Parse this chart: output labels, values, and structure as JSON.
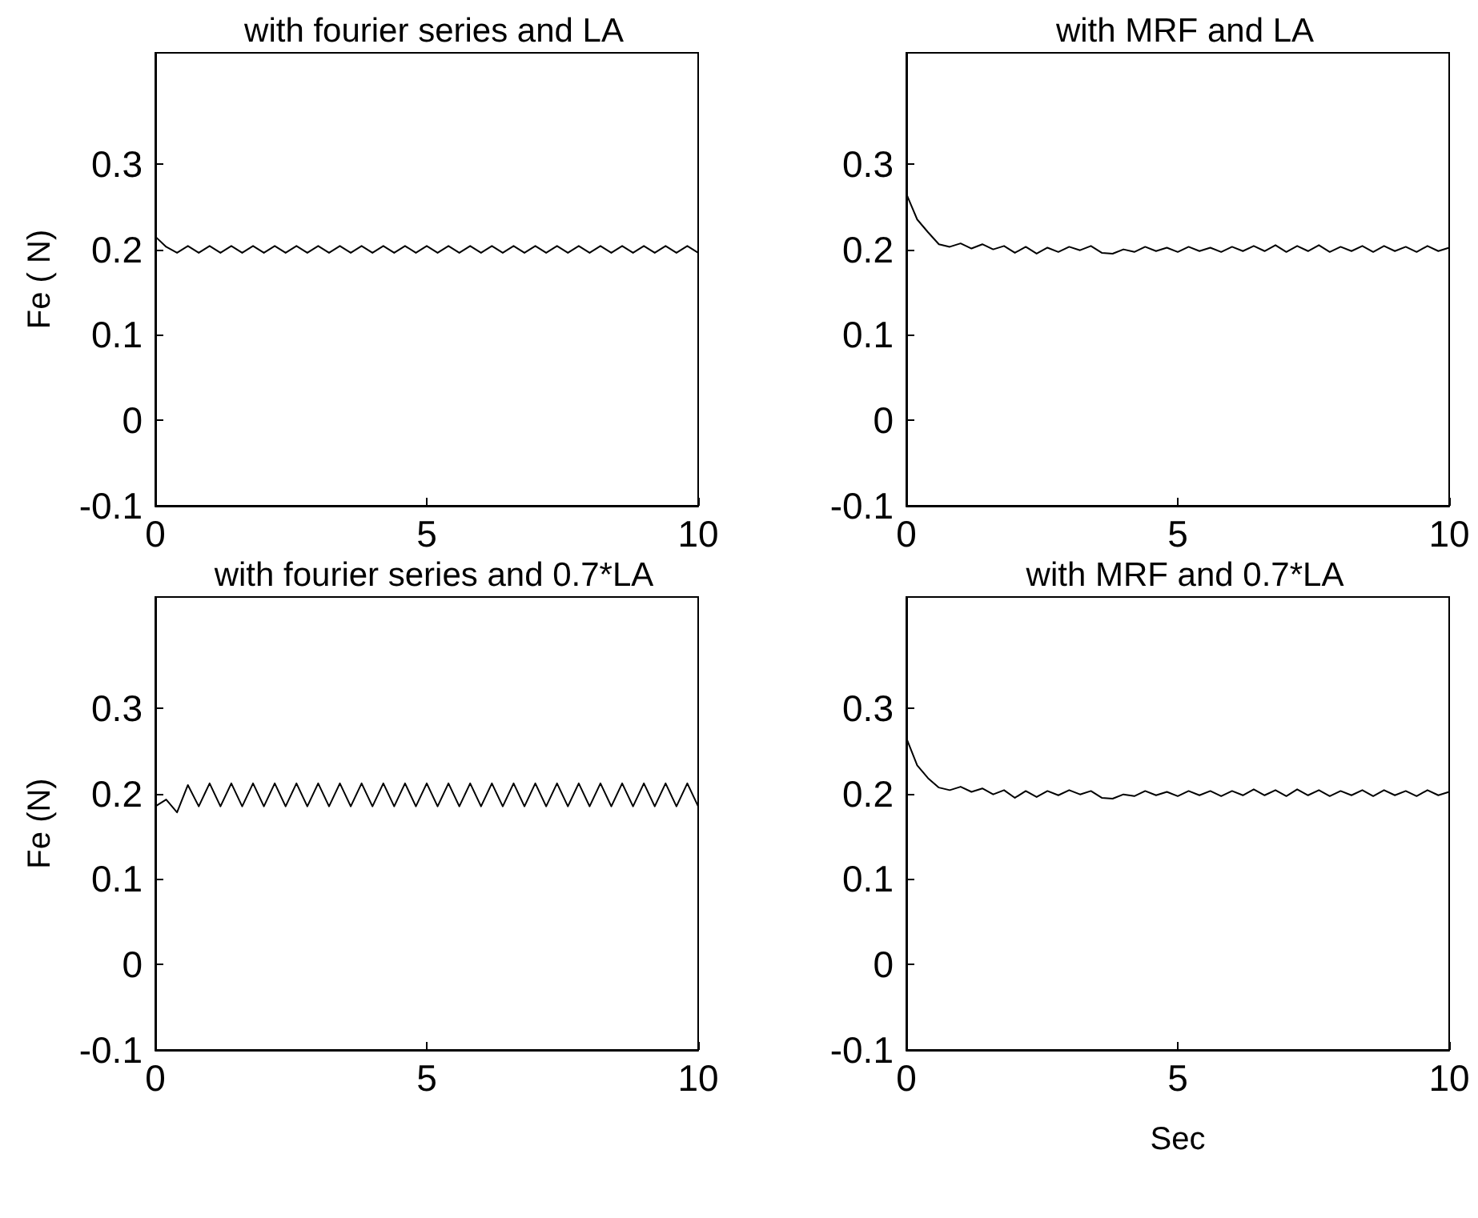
{
  "chart_data": [
    {
      "type": "line",
      "title": "with fourier series and LA",
      "ylabel": "Fe ( N)",
      "xlim": [
        0,
        10
      ],
      "xticks": [
        0,
        5,
        10
      ],
      "ylim": [
        -0.1,
        0.43
      ],
      "yticks": [
        -0.1,
        0,
        0.1,
        0.2,
        0.3
      ],
      "x": [
        0,
        0.2,
        0.4,
        0.6,
        0.8,
        1,
        1.2,
        1.4,
        1.6,
        1.8,
        2,
        2.2,
        2.4,
        2.6,
        2.8,
        3,
        3.2,
        3.4,
        3.6,
        3.8,
        4,
        4.2,
        4.4,
        4.6,
        4.8,
        5,
        5.2,
        5.4,
        5.6,
        5.8,
        6,
        6.2,
        6.4,
        6.6,
        6.8,
        7,
        7.2,
        7.4,
        7.6,
        7.8,
        8,
        8.2,
        8.4,
        8.6,
        8.8,
        9,
        9.2,
        9.4,
        9.6,
        9.8,
        10
      ],
      "series": [
        {
          "color": "#000000",
          "values": [
            0.215,
            0.203,
            0.196,
            0.204,
            0.196,
            0.204,
            0.196,
            0.204,
            0.196,
            0.204,
            0.196,
            0.204,
            0.196,
            0.204,
            0.196,
            0.204,
            0.196,
            0.204,
            0.196,
            0.204,
            0.196,
            0.204,
            0.196,
            0.204,
            0.196,
            0.204,
            0.196,
            0.204,
            0.196,
            0.204,
            0.196,
            0.204,
            0.196,
            0.204,
            0.196,
            0.204,
            0.196,
            0.204,
            0.196,
            0.204,
            0.196,
            0.204,
            0.196,
            0.204,
            0.196,
            0.204,
            0.196,
            0.204,
            0.196,
            0.204,
            0.196
          ]
        }
      ]
    },
    {
      "type": "line",
      "title": "with MRF and LA",
      "xlim": [
        0,
        10
      ],
      "xticks": [
        0,
        5,
        10
      ],
      "ylim": [
        -0.1,
        0.43
      ],
      "yticks": [
        -0.1,
        0,
        0.1,
        0.2,
        0.3
      ],
      "x": [
        0,
        0.2,
        0.4,
        0.6,
        0.8,
        1,
        1.2,
        1.4,
        1.6,
        1.8,
        2,
        2.2,
        2.4,
        2.6,
        2.8,
        3,
        3.2,
        3.4,
        3.6,
        3.8,
        4,
        4.2,
        4.4,
        4.6,
        4.8,
        5,
        5.2,
        5.4,
        5.6,
        5.8,
        6,
        6.2,
        6.4,
        6.6,
        6.8,
        7,
        7.2,
        7.4,
        7.6,
        7.8,
        8,
        8.2,
        8.4,
        8.6,
        8.8,
        9,
        9.2,
        9.4,
        9.6,
        9.8,
        10
      ],
      "series": [
        {
          "color": "#000000",
          "values": [
            0.265,
            0.235,
            0.22,
            0.206,
            0.203,
            0.207,
            0.201,
            0.206,
            0.2,
            0.204,
            0.196,
            0.203,
            0.195,
            0.202,
            0.197,
            0.203,
            0.199,
            0.204,
            0.196,
            0.195,
            0.2,
            0.197,
            0.203,
            0.198,
            0.202,
            0.197,
            0.203,
            0.198,
            0.202,
            0.197,
            0.203,
            0.198,
            0.204,
            0.198,
            0.205,
            0.197,
            0.204,
            0.198,
            0.205,
            0.197,
            0.203,
            0.198,
            0.204,
            0.197,
            0.204,
            0.198,
            0.203,
            0.197,
            0.204,
            0.198,
            0.202
          ]
        }
      ]
    },
    {
      "type": "line",
      "title": "with fourier series and 0.7*LA",
      "ylabel": "Fe (N)",
      "xlim": [
        0,
        10
      ],
      "xticks": [
        0,
        5,
        10
      ],
      "ylim": [
        -0.1,
        0.43
      ],
      "yticks": [
        -0.1,
        0,
        0.1,
        0.2,
        0.3
      ],
      "x": [
        0,
        0.2,
        0.4,
        0.6,
        0.8,
        1,
        1.2,
        1.4,
        1.6,
        1.8,
        2,
        2.2,
        2.4,
        2.6,
        2.8,
        3,
        3.2,
        3.4,
        3.6,
        3.8,
        4,
        4.2,
        4.4,
        4.6,
        4.8,
        5,
        5.2,
        5.4,
        5.6,
        5.8,
        6,
        6.2,
        6.4,
        6.6,
        6.8,
        7,
        7.2,
        7.4,
        7.6,
        7.8,
        8,
        8.2,
        8.4,
        8.6,
        8.8,
        9,
        9.2,
        9.4,
        9.6,
        9.8,
        10
      ],
      "series": [
        {
          "color": "#000000",
          "values": [
            0.185,
            0.193,
            0.178,
            0.21,
            0.185,
            0.212,
            0.185,
            0.212,
            0.185,
            0.212,
            0.185,
            0.212,
            0.185,
            0.212,
            0.185,
            0.212,
            0.185,
            0.212,
            0.185,
            0.212,
            0.185,
            0.212,
            0.185,
            0.212,
            0.185,
            0.212,
            0.185,
            0.212,
            0.185,
            0.212,
            0.185,
            0.212,
            0.185,
            0.212,
            0.185,
            0.212,
            0.185,
            0.212,
            0.185,
            0.212,
            0.185,
            0.212,
            0.185,
            0.212,
            0.185,
            0.212,
            0.185,
            0.212,
            0.185,
            0.212,
            0.185
          ]
        }
      ]
    },
    {
      "type": "line",
      "title": "with MRF and 0.7*LA",
      "xlabel": "Sec",
      "xlim": [
        0,
        10
      ],
      "xticks": [
        0,
        5,
        10
      ],
      "ylim": [
        -0.1,
        0.43
      ],
      "yticks": [
        -0.1,
        0,
        0.1,
        0.2,
        0.3
      ],
      "x": [
        0,
        0.2,
        0.4,
        0.6,
        0.8,
        1,
        1.2,
        1.4,
        1.6,
        1.8,
        2,
        2.2,
        2.4,
        2.6,
        2.8,
        3,
        3.2,
        3.4,
        3.6,
        3.8,
        4,
        4.2,
        4.4,
        4.6,
        4.8,
        5,
        5.2,
        5.4,
        5.6,
        5.8,
        6,
        6.2,
        6.4,
        6.6,
        6.8,
        7,
        7.2,
        7.4,
        7.6,
        7.8,
        8,
        8.2,
        8.4,
        8.6,
        8.8,
        9,
        9.2,
        9.4,
        9.6,
        9.8,
        10
      ],
      "series": [
        {
          "color": "#000000",
          "values": [
            0.265,
            0.233,
            0.218,
            0.207,
            0.204,
            0.208,
            0.202,
            0.206,
            0.199,
            0.204,
            0.195,
            0.203,
            0.196,
            0.203,
            0.198,
            0.204,
            0.199,
            0.203,
            0.195,
            0.194,
            0.199,
            0.197,
            0.203,
            0.198,
            0.202,
            0.197,
            0.203,
            0.198,
            0.203,
            0.197,
            0.203,
            0.198,
            0.205,
            0.198,
            0.204,
            0.197,
            0.205,
            0.198,
            0.204,
            0.197,
            0.203,
            0.198,
            0.204,
            0.197,
            0.204,
            0.198,
            0.203,
            0.197,
            0.204,
            0.198,
            0.202
          ]
        }
      ]
    }
  ]
}
